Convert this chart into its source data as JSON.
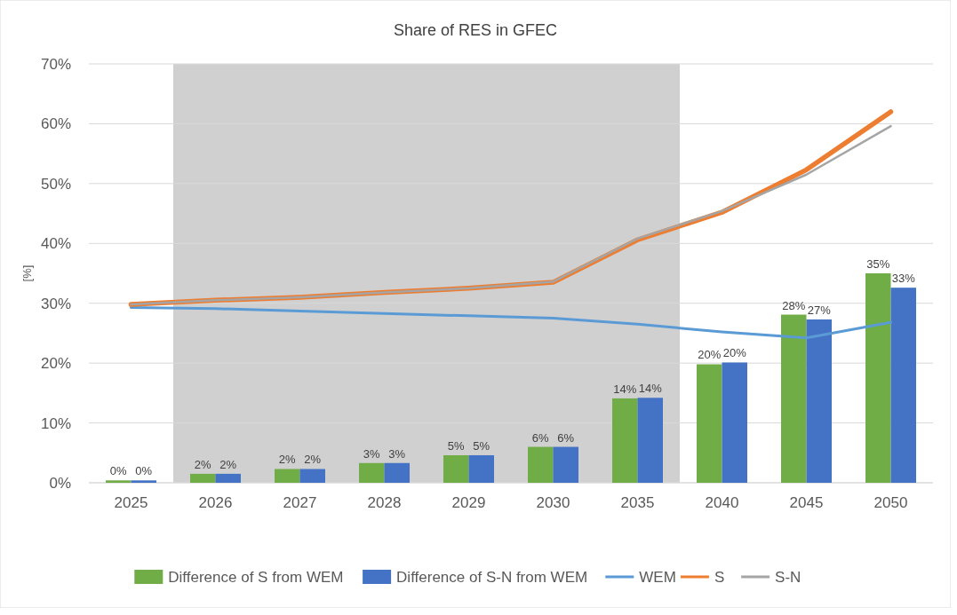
{
  "chart_data": {
    "type": "bar",
    "title": "Share of RES in GFEC",
    "ylabel": "[%]",
    "categories": [
      "2025",
      "2026",
      "2027",
      "2028",
      "2029",
      "2030",
      "2035",
      "2040",
      "2045",
      "2050"
    ],
    "series": [
      {
        "name": "Difference of S from WEM",
        "color": "#70ad47",
        "values": [
          0.4,
          1.5,
          2.3,
          3.3,
          4.6,
          6.0,
          14.1,
          19.8,
          28.1,
          35.0
        ],
        "value_labels": [
          "0%",
          "2%",
          "2%",
          "3%",
          "5%",
          "6%",
          "14%",
          "20%",
          "28%",
          "35%"
        ]
      },
      {
        "name": "Difference of S-N from WEM",
        "color": "#4472c4",
        "values": [
          0.4,
          1.5,
          2.3,
          3.3,
          4.6,
          6.0,
          14.2,
          20.1,
          27.3,
          32.6
        ],
        "value_labels": [
          "0%",
          "2%",
          "2%",
          "3%",
          "5%",
          "6%",
          "14%",
          "20%",
          "27%",
          "33%"
        ]
      },
      {
        "name": "WEM",
        "type": "line",
        "color": "#5b9bd5",
        "values": [
          29.3,
          29.1,
          28.7,
          28.3,
          27.9,
          27.5,
          26.5,
          25.2,
          24.2,
          26.8
        ]
      },
      {
        "name": "S",
        "type": "line",
        "color": "#ed7d31",
        "values": [
          29.8,
          30.5,
          31.0,
          31.8,
          32.5,
          33.5,
          40.6,
          45.2,
          52.3,
          62.0
        ]
      },
      {
        "name": "S-N",
        "type": "line",
        "color": "#a5a5a5",
        "values": [
          29.8,
          30.5,
          31.0,
          31.8,
          32.5,
          33.6,
          40.8,
          45.4,
          51.5,
          59.6
        ]
      }
    ],
    "ylim": [
      0,
      70
    ],
    "yticks": [
      {
        "value": 0,
        "label": "0%"
      },
      {
        "value": 10,
        "label": "10%"
      },
      {
        "value": 20,
        "label": "20%"
      },
      {
        "value": 30,
        "label": "30%"
      },
      {
        "value": 40,
        "label": "40%"
      },
      {
        "value": 50,
        "label": "50%"
      },
      {
        "value": 60,
        "label": "60%"
      },
      {
        "value": 70,
        "label": "70%"
      }
    ],
    "bands": [
      {
        "axis": "x",
        "from": "2026",
        "to": "2035",
        "color": "#d0d0d0"
      }
    ],
    "grid": "y",
    "legend": "bottom"
  }
}
